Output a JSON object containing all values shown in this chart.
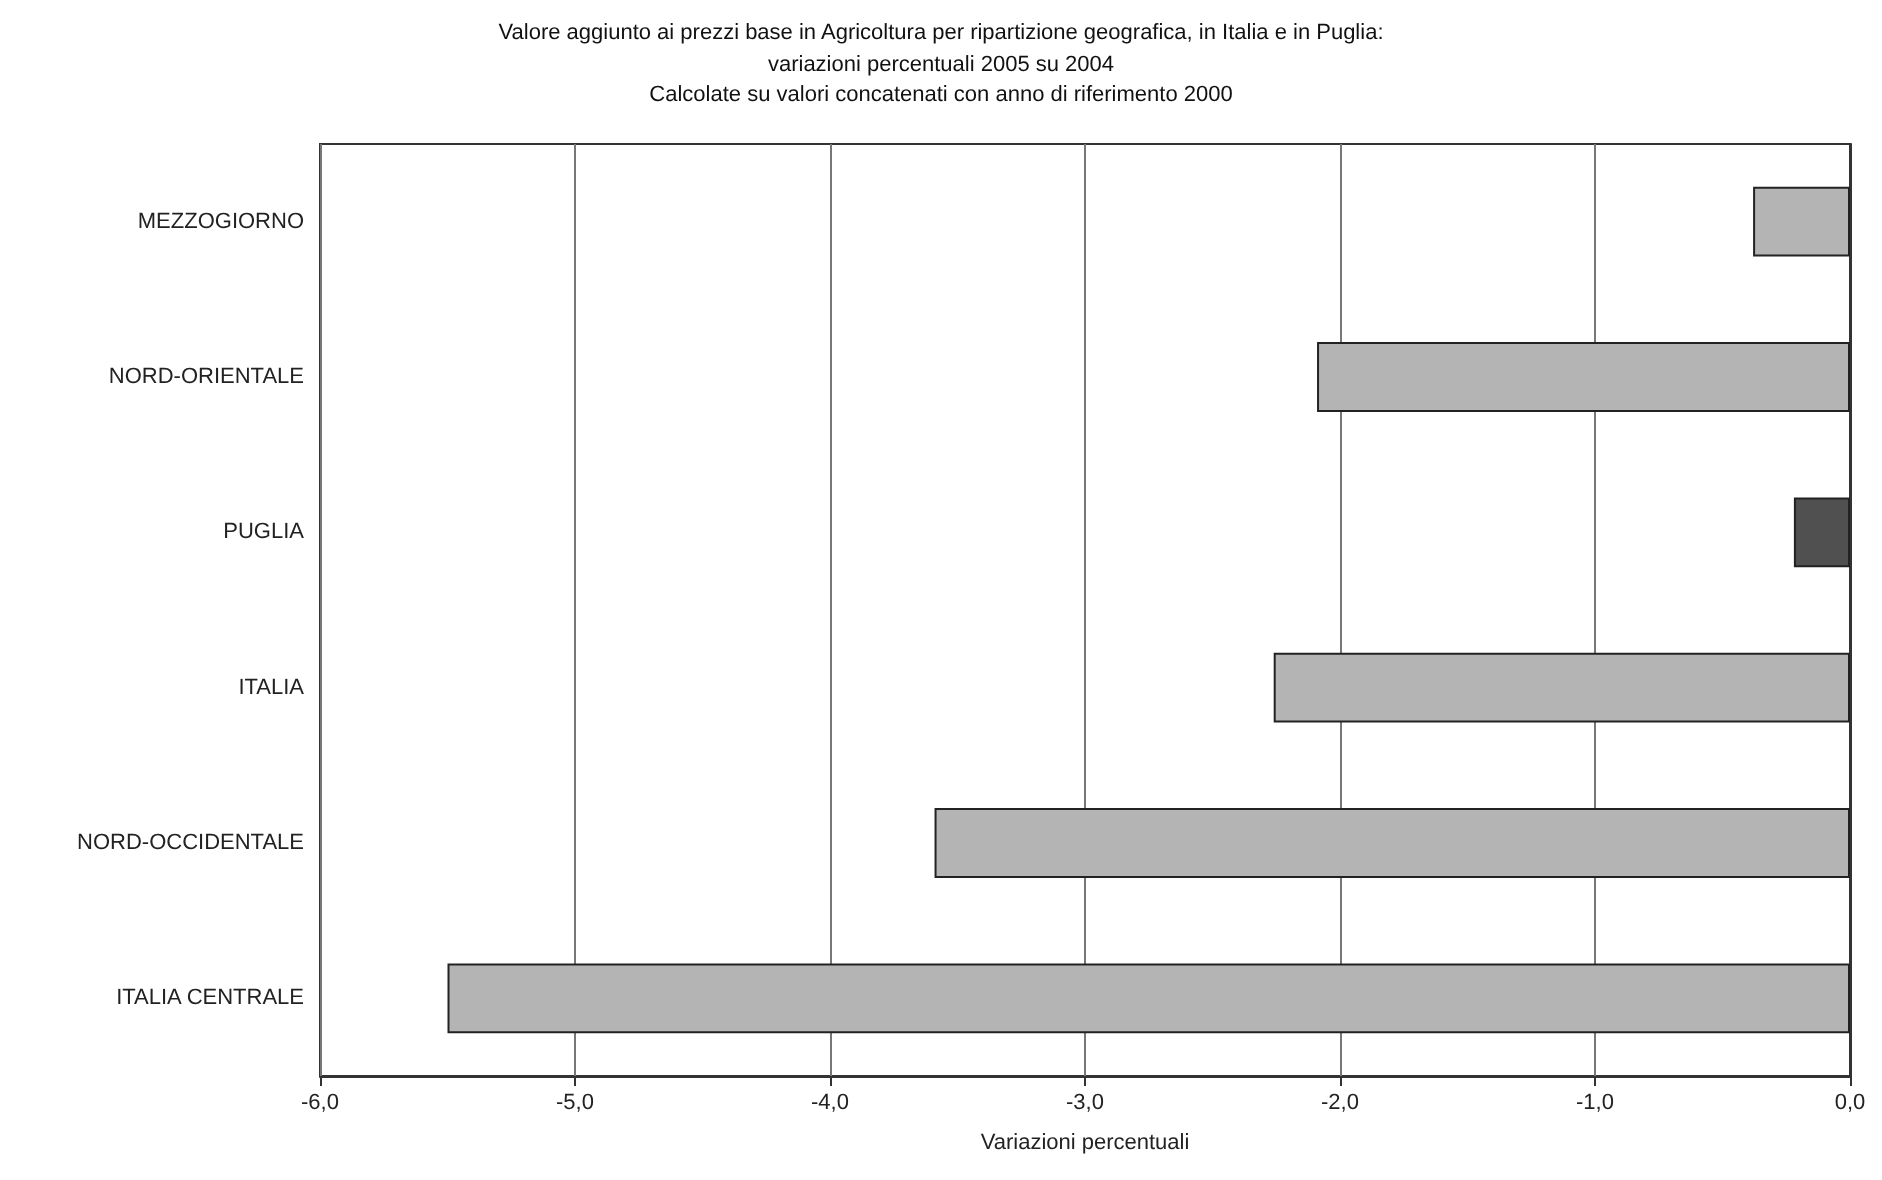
{
  "chart_data": {
    "type": "bar",
    "orientation": "horizontal",
    "title": "Valore aggiunto ai prezzi base in Agricoltura per ripartizione geografica, in Italia e in Puglia:",
    "subtitle": "variazioni percentuali 2005 su 2004\nCalcolate su valori concatenati con anno di riferimento 2000",
    "xlabel": "Variazioni percentuali",
    "categories": [
      "MEZZOGIORNO",
      "NORD-ORIENTALE",
      "PUGLIA",
      "ITALIA",
      "NORD-OCCIDENTALE",
      "ITALIA CENTRALE"
    ],
    "values": [
      -0.38,
      -2.09,
      -0.22,
      -2.26,
      -3.59,
      -5.5
    ],
    "colors": [
      "#b4b4b4",
      "#b4b4b4",
      "#505050",
      "#b4b4b4",
      "#b4b4b4",
      "#b4b4b4"
    ],
    "xlim": [
      -6,
      0
    ],
    "xticks": [
      {
        "value": -6,
        "label": "-6,0"
      },
      {
        "value": -5,
        "label": "-5,0"
      },
      {
        "value": -4,
        "label": "-4,0"
      },
      {
        "value": -3,
        "label": "-3,0"
      },
      {
        "value": -2,
        "label": "-2,0"
      },
      {
        "value": -1,
        "label": "-1,0"
      },
      {
        "value": 0,
        "label": "0,0"
      }
    ],
    "grid": "x"
  }
}
